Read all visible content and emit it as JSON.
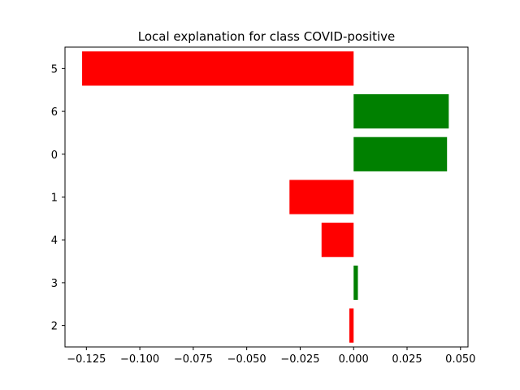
{
  "chart_data": {
    "type": "bar",
    "orientation": "horizontal",
    "title": "Local explanation for class COVID-positive",
    "xlabel": "",
    "ylabel": "",
    "categories": [
      "5",
      "6",
      "0",
      "1",
      "4",
      "3",
      "2"
    ],
    "values": [
      -0.127,
      0.0445,
      0.0437,
      -0.03,
      -0.015,
      0.002,
      -0.002
    ],
    "xlim": [
      -0.135,
      0.0535
    ],
    "xticks": [
      -0.125,
      -0.1,
      -0.075,
      -0.05,
      -0.025,
      0.0,
      0.025,
      0.05
    ],
    "xtick_labels": [
      "−0.125",
      "−0.100",
      "−0.075",
      "−0.050",
      "−0.025",
      "0.000",
      "0.025",
      "0.050"
    ],
    "grid": false,
    "legend": "none",
    "colors": {
      "positive": "#008000",
      "negative": "#ff0000",
      "axis": "#000000",
      "background": "#ffffff"
    }
  }
}
